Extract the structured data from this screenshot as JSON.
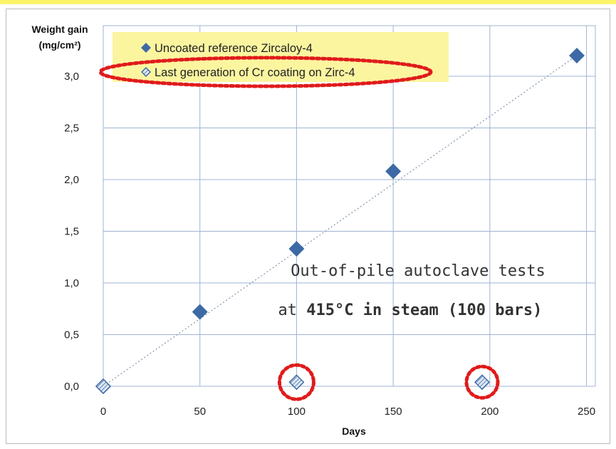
{
  "chart_data": {
    "type": "scatter",
    "xlabel": "Days",
    "ylabel_line1": "Weight gain",
    "ylabel_line2": "(mg/cm²)",
    "xlim": [
      0,
      250
    ],
    "ylim": [
      0,
      3.25
    ],
    "x_ticks": [
      0,
      50,
      100,
      150,
      200,
      250
    ],
    "x_tick_labels": [
      "0",
      "50",
      "100",
      "150",
      "200",
      "250"
    ],
    "y_ticks": [
      0,
      0.5,
      1.0,
      1.5,
      2.0,
      2.5,
      3.0
    ],
    "y_tick_labels": [
      "0,0",
      "0,5",
      "1,0",
      "1,5",
      "2,0",
      "2,5",
      "3,0"
    ],
    "grid": true,
    "legend_position": "top-left",
    "series": [
      {
        "name": "Uncoated reference Zircaloy-4",
        "color": "#3d6aa5",
        "marker": "diamond-filled",
        "points": [
          [
            0,
            0.0
          ],
          [
            50,
            0.72
          ],
          [
            100,
            1.33
          ],
          [
            150,
            2.08
          ],
          [
            245,
            3.2
          ]
        ]
      },
      {
        "name": "Last generation of Cr coating on Zirc-4",
        "color": "#3d6aa5",
        "marker": "diamond-hatched",
        "points": [
          [
            0,
            0.0
          ],
          [
            100,
            0.04
          ],
          [
            196,
            0.04
          ]
        ]
      }
    ],
    "trendline": {
      "series": 0,
      "style": "dotted",
      "color": "#8a9bb5",
      "from": [
        0,
        0.0
      ],
      "to": [
        245,
        3.2
      ]
    },
    "annotation": {
      "line1": "Out-of-pile autoclave tests",
      "line2_prefix": "at ",
      "line2_bold": "415°C in steam (100 bars)"
    },
    "highlight_color": "#e01b1b",
    "legend_background": "#fbf5a0"
  }
}
